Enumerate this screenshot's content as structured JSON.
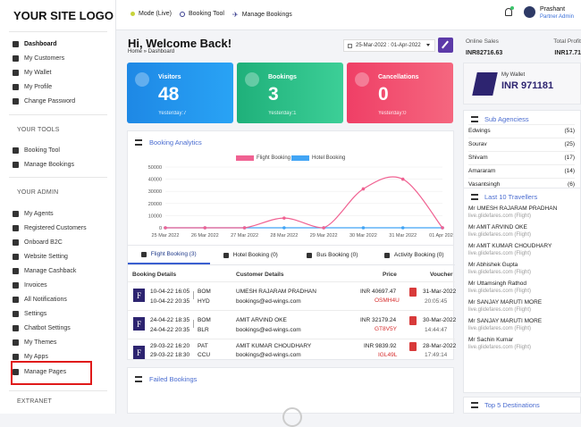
{
  "sidebar": {
    "logo": "YOUR SITE LOGO",
    "menu": [
      {
        "label": "Dashboard",
        "icon": "dashboard-icon"
      },
      {
        "label": "My Customers",
        "icon": "user-icon"
      },
      {
        "label": "My Wallet",
        "icon": "wallet-icon"
      },
      {
        "label": "My Profile",
        "icon": "user-icon"
      },
      {
        "label": "Change Password",
        "icon": "edit-icon"
      }
    ],
    "tools_heading": "YOUR TOOLS",
    "tools": [
      {
        "label": "Booking Tool",
        "icon": "search-icon"
      },
      {
        "label": "Manage Bookings",
        "icon": "plane-icon"
      }
    ],
    "admin_heading": "YOUR ADMIN",
    "admin": [
      {
        "label": "My Agents",
        "icon": "users-icon"
      },
      {
        "label": "Registered Customers",
        "icon": "user-icon"
      },
      {
        "label": "Onboard B2C",
        "icon": "id-card-icon"
      },
      {
        "label": "Website Setting",
        "icon": "globe-icon"
      },
      {
        "label": "Manage Cashback",
        "icon": "tag-icon"
      },
      {
        "label": "Invoices",
        "icon": "invoice-icon"
      },
      {
        "label": "All Notifications",
        "icon": "bell-icon"
      },
      {
        "label": "Settings",
        "icon": "gear-icon"
      },
      {
        "label": "Chatbot Settings",
        "icon": "chat-icon"
      },
      {
        "label": "My Themes",
        "icon": "theme-icon"
      },
      {
        "label": "My Apps",
        "icon": "rocket-icon"
      },
      {
        "label": "Manage Pages",
        "icon": "page-icon"
      }
    ],
    "extranet_heading": "EXTRANET"
  },
  "topbar": {
    "mode": "Mode (Live)",
    "booking_tool": "Booking Tool",
    "manage_bookings": "Manage Bookings",
    "user_name": "Prashant",
    "user_role": "Partner Admin"
  },
  "main": {
    "welcome": "Hi, Welcome Back!",
    "breadcrumb": "Home » Dashboard",
    "date_range": "25-Mar-2022 : 01-Apr-2022",
    "cards": [
      {
        "title": "Visitors",
        "value": "48",
        "sub": "Yesterday:7",
        "color": "#2196f3"
      },
      {
        "title": "Bookings",
        "value": "3",
        "sub": "Yesterday:1",
        "color": "#22b87a"
      },
      {
        "title": "Cancellations",
        "value": "0",
        "sub": "Yesterday:0",
        "color": "#f2436a"
      }
    ],
    "analytics_title": "Booking Analytics",
    "failed_title": "Failed Bookings"
  },
  "chart_data": {
    "type": "line",
    "x": [
      "25 Mar 2022",
      "26 Mar 2022",
      "27 Mar 2022",
      "28 Mar 2022",
      "29 Mar 2022",
      "30 Mar 2022",
      "31 Mar 2022",
      "01 Apr 2022"
    ],
    "yticks": [
      "50000",
      "40000",
      "30000",
      "20000",
      "10000",
      "0"
    ],
    "ylim": [
      0,
      50000
    ],
    "series": [
      {
        "name": "Flight Booking",
        "color": "#f06292",
        "values": [
          0,
          0,
          0,
          8000,
          0,
          32000,
          40000,
          0
        ]
      },
      {
        "name": "Hotel Booking",
        "color": "#42a5f5",
        "values": [
          0,
          0,
          0,
          0,
          0,
          0,
          0,
          0
        ]
      }
    ]
  },
  "bookings": {
    "tabs": [
      "Flight Booking (3)",
      "Hotel Booking (0)",
      "Bus Booking (0)",
      "Activity Booking (0)"
    ],
    "headers": {
      "details": "Booking Details",
      "customer": "Customer Details",
      "price": "Price",
      "voucher": "Voucher"
    },
    "rows": [
      {
        "dep_time": "10-04-22 16:05",
        "dep": "BOM",
        "arr_time": "10-04-22 20:35",
        "arr": "HYD",
        "name": "UMESH RAJARAM PRADHAN",
        "email": "bookings@ed-wings.com",
        "price": "INR 40697.47",
        "pnr": "OSMH4U",
        "vdate": "31-Mar-2022",
        "vtime": "20:05:45"
      },
      {
        "dep_time": "24-04-22 18:35",
        "dep": "BOM",
        "arr_time": "24-04-22 20:35",
        "arr": "BLR",
        "name": "AMIT ARVIND OKE",
        "email": "bookings@ed-wings.com",
        "price": "INR 32179.24",
        "pnr": "GT8V5Y",
        "vdate": "30-Mar-2022",
        "vtime": "14:44:47"
      },
      {
        "dep_time": "29-03-22 16:20",
        "dep": "PAT",
        "arr_time": "29-03-22 18:30",
        "arr": "CCU",
        "name": "AMIT KUMAR CHOUDHARY",
        "email": "bookings@ed-wings.com",
        "price": "INR 9839.92",
        "pnr": "IGL49L",
        "vdate": "28-Mar-2022",
        "vtime": "17:49:14"
      }
    ]
  },
  "right": {
    "online_sales_label": "Online Sales",
    "online_sales": "INR82716.63",
    "total_profit_label": "Total Profit",
    "total_profit": "INR17.71",
    "wallet_label": "My Wallet",
    "wallet_value": "INR 971181",
    "agencies_title": "Sub Agenciess",
    "agencies": [
      {
        "name": "Edwings",
        "count": "(51)"
      },
      {
        "name": "Sourav",
        "count": "(25)"
      },
      {
        "name": "Shivam",
        "count": "(17)"
      },
      {
        "name": "Amararam",
        "count": "(14)"
      },
      {
        "name": "Vasantsingh",
        "count": "(6)"
      }
    ],
    "travellers_title": "Last 10 Travellers",
    "travellers": [
      {
        "name": "Mr UMESH RAJARAM PRADHAN",
        "site": "live.glidefares.com (Flight)"
      },
      {
        "name": "Mr AMIT ARVIND OKE",
        "site": "live.glidefares.com (Flight)"
      },
      {
        "name": "Mr AMIT KUMAR CHOUDHARY",
        "site": "live.glidefares.com (Flight)"
      },
      {
        "name": "Mr Abhishek Gupta",
        "site": "live.glidefares.com (Flight)"
      },
      {
        "name": "Mr Uttamsingh Rathod",
        "site": "live.glidefares.com (Flight)"
      },
      {
        "name": "Mr SANJAY MARUTI MORE",
        "site": "live.glidefares.com (Flight)"
      },
      {
        "name": "Mr SANJAY MARUTI MORE",
        "site": "live.glidefares.com (Flight)"
      },
      {
        "name": "Mr Sachin Kumar",
        "site": "live.glidefares.com (Flight)"
      }
    ],
    "destinations_title": "Top 5 Destinations"
  }
}
